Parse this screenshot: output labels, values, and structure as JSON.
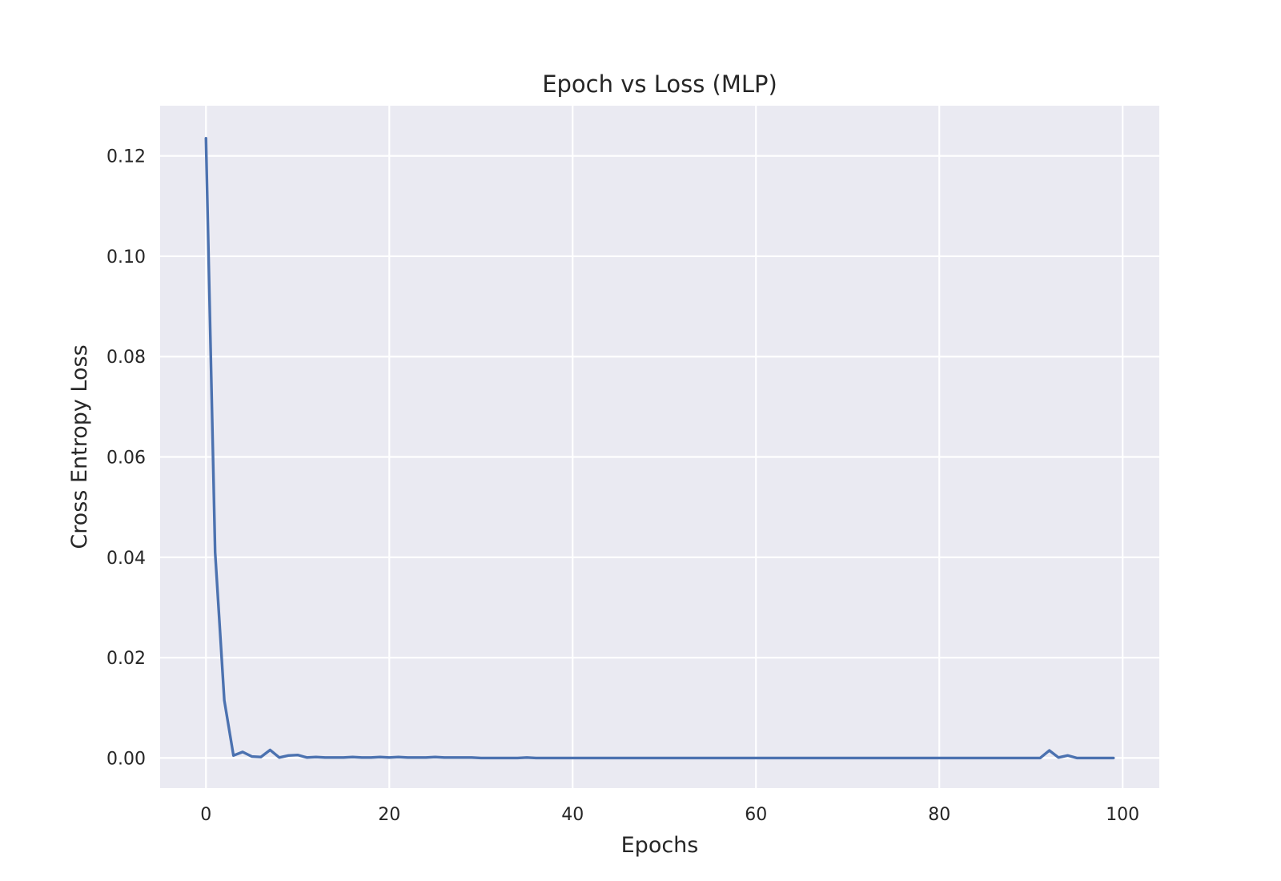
{
  "chart_data": {
    "type": "line",
    "title": "Epoch vs Loss (MLP)",
    "xlabel": "Epochs",
    "ylabel": "Cross Entropy Loss",
    "xlim": [
      -5,
      104
    ],
    "ylim": [
      -0.006,
      0.13
    ],
    "xticks": [
      0,
      20,
      40,
      60,
      80,
      100
    ],
    "xtick_labels": [
      "0",
      "20",
      "40",
      "60",
      "80",
      "100"
    ],
    "yticks": [
      0,
      0.02,
      0.04,
      0.06,
      0.08,
      0.1,
      0.12
    ],
    "ytick_labels": [
      "0.00",
      "0.02",
      "0.04",
      "0.06",
      "0.08",
      "0.10",
      "0.12"
    ],
    "grid": true,
    "colors": {
      "background": "#EAEAF2",
      "grid": "#FFFFFF",
      "line": "#4C72B0"
    },
    "series": [
      {
        "values": [
          0.1235,
          0.041,
          0.0115,
          0.0005,
          0.0012,
          0.0003,
          0.0002,
          0.0016,
          0.0001,
          0.0005,
          0.0006,
          0.0001,
          0.0002,
          0.0001,
          0.0001,
          0.0001,
          0.0002,
          0.0001,
          0.0001,
          0.0002,
          0.0001,
          0.0002,
          0.0001,
          0.0001,
          0.0001,
          0.0002,
          0.0001,
          0.0001,
          0.0001,
          0.0001,
          0.0,
          0.0,
          0.0,
          0.0,
          0.0,
          0.0001,
          0.0,
          0.0,
          0.0,
          0.0,
          0.0,
          0.0,
          0.0,
          0.0,
          0.0,
          0.0,
          0.0,
          0.0,
          0.0,
          0.0,
          0.0,
          0.0,
          0.0,
          0.0,
          0.0,
          0.0,
          0.0,
          0.0,
          0.0,
          0.0,
          0.0,
          0.0,
          0.0,
          0.0,
          0.0,
          0.0,
          0.0,
          0.0,
          0.0,
          0.0,
          0.0,
          0.0,
          0.0,
          0.0,
          0.0,
          0.0,
          0.0,
          0.0,
          0.0,
          0.0,
          0.0,
          0.0,
          0.0,
          0.0,
          0.0,
          0.0,
          0.0,
          0.0,
          0.0,
          0.0,
          0.0,
          0.0,
          0.0015,
          0.0001,
          0.0005,
          0.0,
          0.0,
          0.0,
          0.0,
          0.0
        ]
      }
    ]
  }
}
